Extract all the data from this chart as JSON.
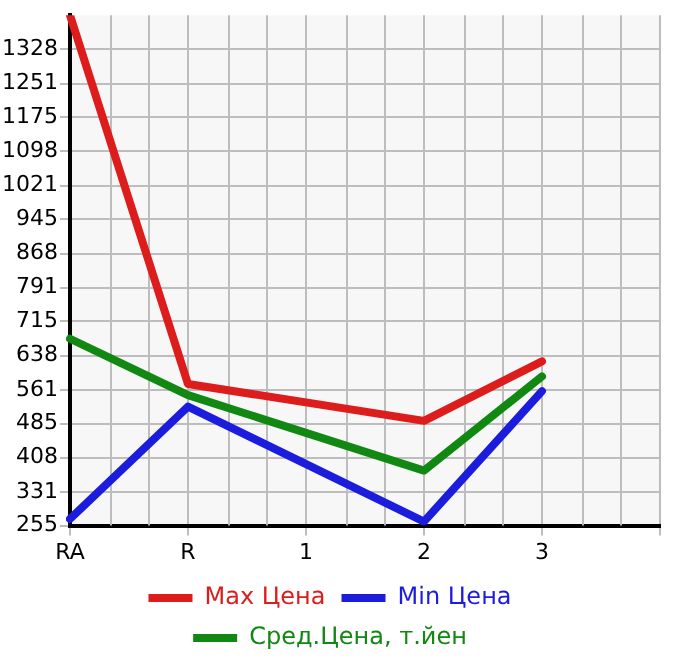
{
  "chart_data": {
    "type": "line",
    "categories": [
      "RA",
      "R",
      "1",
      "2",
      "3",
      null
    ],
    "series": [
      {
        "name": "Max Цена",
        "color": "#dd1c1c",
        "values": [
          1405,
          574,
          null,
          491,
          625,
          null
        ]
      },
      {
        "name": "Min Цена",
        "color": "#1c1cdd",
        "values": [
          270,
          523,
          null,
          264,
          558,
          null
        ]
      },
      {
        "name": "Сред.Цена, т.йен",
        "color": "#118811",
        "values": [
          676,
          549,
          null,
          379,
          591,
          null
        ]
      }
    ],
    "ylim": [
      255,
      1405
    ],
    "yticks": [
      255,
      331,
      408,
      485,
      561,
      638,
      715,
      791,
      868,
      945,
      1021,
      1098,
      1175,
      1251,
      1328
    ],
    "grid": true,
    "legend": "bottom",
    "marker": "none",
    "line_style": "solid"
  }
}
